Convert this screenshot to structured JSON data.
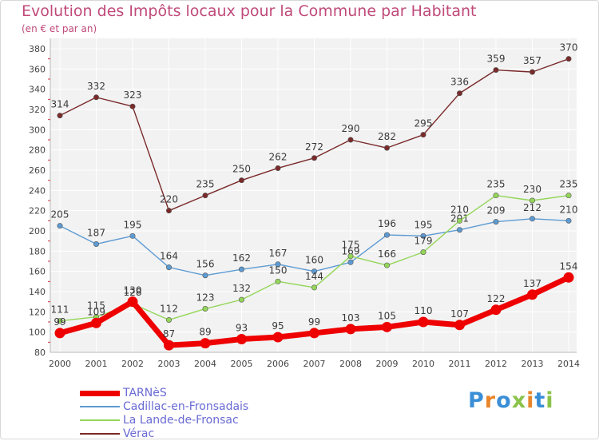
{
  "title": "Evolution des Impôts locaux pour la Commune par Habitant",
  "subtitle": "(en € et par an)",
  "brand": {
    "letters": [
      "P",
      "r",
      "o",
      "x",
      "i",
      "t",
      "i"
    ],
    "colors": [
      "#3a8ed6",
      "#e8862a",
      "#3a8ed6",
      "#8bc34a",
      "#e8862a",
      "#3a8ed6",
      "#8bc34a"
    ]
  },
  "chart_data": {
    "type": "line",
    "title": "Evolution des Impôts locaux pour la Commune par Habitant",
    "ylabel": "(en € et par an)",
    "xlabel": "",
    "ylim": [
      80,
      380
    ],
    "yticks": [
      80,
      100,
      120,
      140,
      160,
      180,
      200,
      220,
      240,
      260,
      280,
      300,
      320,
      340,
      360,
      380
    ],
    "categories": [
      "2000",
      "2001",
      "2002",
      "2003",
      "2004",
      "2005",
      "2006",
      "2007",
      "2008",
      "2009",
      "2010",
      "2011",
      "2012",
      "2013",
      "2014"
    ],
    "grid": true,
    "legend_position": "bottom-left",
    "series": [
      {
        "name": "Vérac",
        "color": "#7a2a2a",
        "values": [
          314,
          332,
          323,
          220,
          235,
          250,
          262,
          272,
          290,
          282,
          295,
          336,
          359,
          357,
          370
        ]
      },
      {
        "name": "Cadillac-en-Fronsadais",
        "color": "#5d9bd3",
        "values": [
          205,
          187,
          195,
          164,
          156,
          162,
          167,
          160,
          169,
          196,
          195,
          201,
          209,
          212,
          210
        ]
      },
      {
        "name": "La Lande-de-Fronsac",
        "color": "#94d659",
        "values": [
          111,
          115,
          128,
          112,
          123,
          132,
          150,
          144,
          175,
          166,
          179,
          210,
          235,
          230,
          235
        ]
      },
      {
        "name": "TARNèS",
        "color": "#ee0000",
        "values": [
          99,
          109,
          130,
          87,
          89,
          93,
          95,
          99,
          103,
          105,
          110,
          107,
          122,
          137,
          154
        ]
      }
    ],
    "legend_order": [
      "TARNèS",
      "Cadillac-en-Fronsadais",
      "La Lande-de-Fronsac",
      "Vérac"
    ]
  }
}
